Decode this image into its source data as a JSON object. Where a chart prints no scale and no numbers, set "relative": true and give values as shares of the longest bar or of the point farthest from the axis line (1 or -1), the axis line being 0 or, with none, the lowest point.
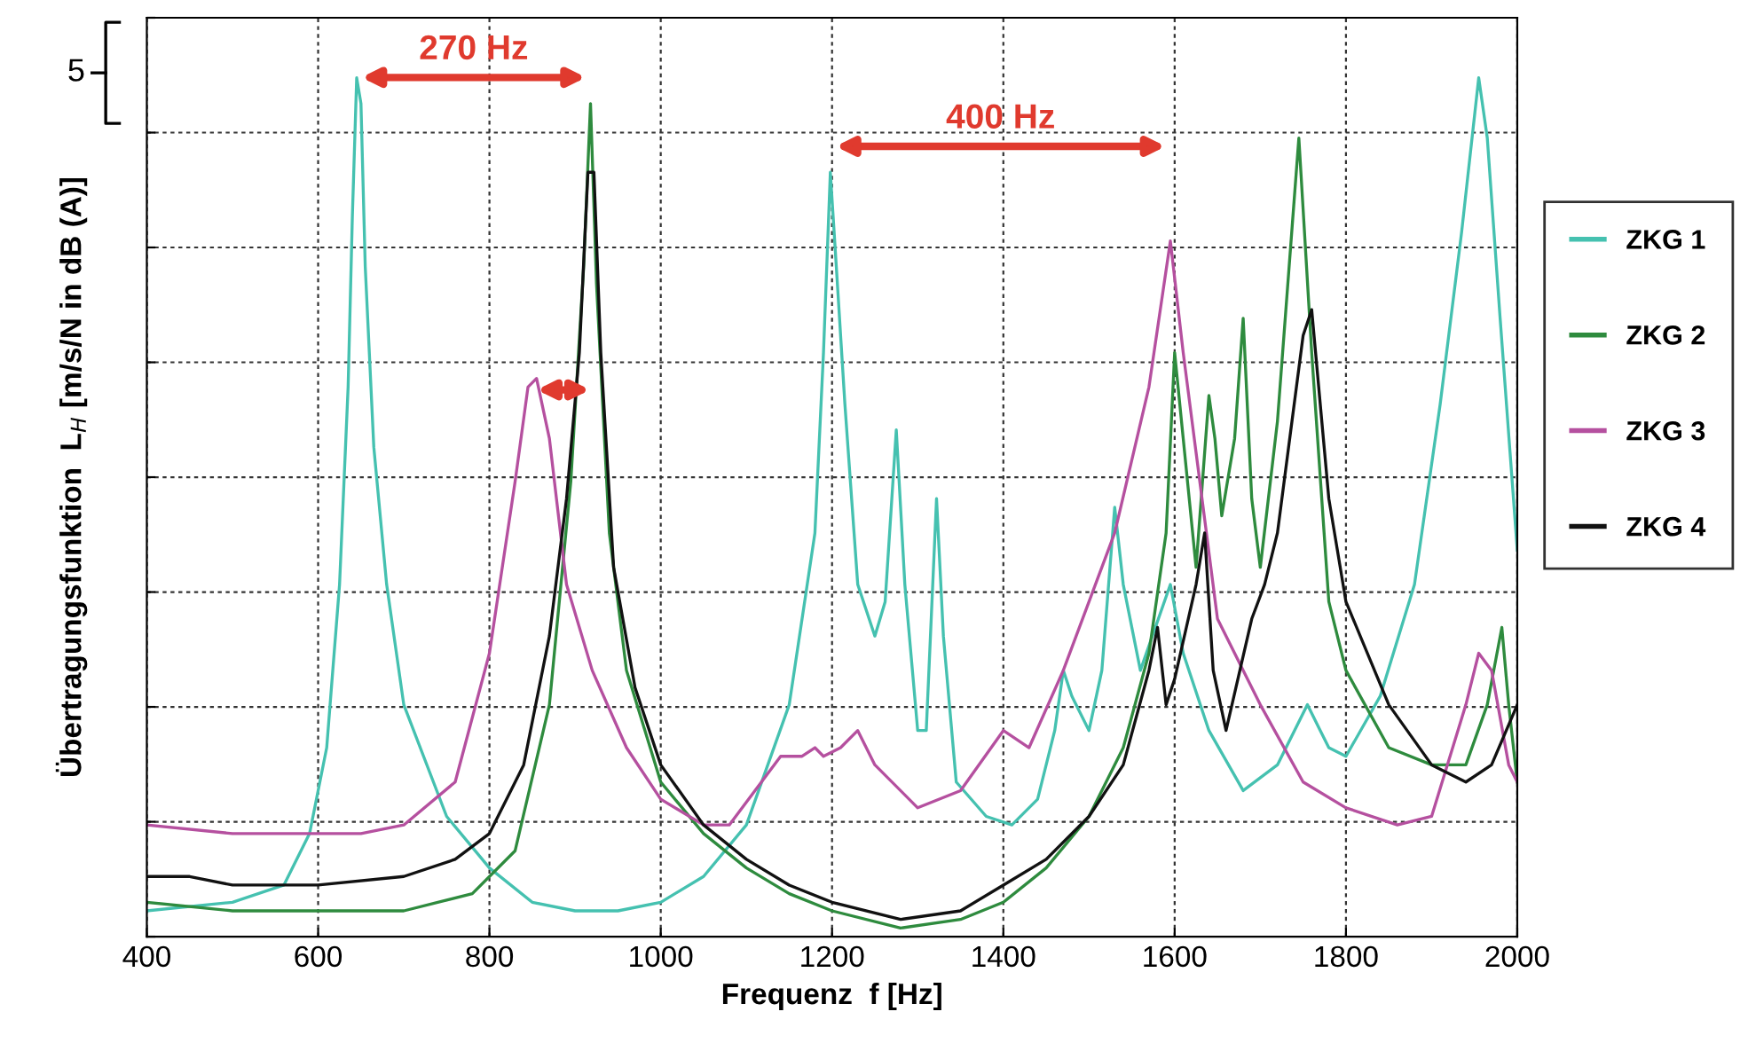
{
  "chart_data": {
    "type": "line",
    "relative": true,
    "xlabel": "Frequenz  f [Hz]",
    "ylabel": "Übertragungsfunktion  L$_{H}$ [m/s/N in dB (A)]",
    "xlim": [
      400,
      2000
    ],
    "xticks": [
      400,
      600,
      800,
      1000,
      1200,
      1400,
      1600,
      1800,
      2000
    ],
    "grid": true,
    "legend": "right",
    "line_style": "solid",
    "annotations": [
      "270 Hz",
      "400 Hz",
      "5"
    ],
    "series": [
      {
        "name": "ZKG 1",
        "color": "#45c1b0",
        "x": [
          400,
          500,
          560,
          590,
          610,
          625,
          635,
          640,
          645,
          650,
          655,
          665,
          680,
          700,
          750,
          800,
          850,
          900,
          950,
          1000,
          1050,
          1100,
          1150,
          1180,
          1190,
          1198,
          1205,
          1215,
          1230,
          1250,
          1262,
          1275,
          1285,
          1300,
          1310,
          1322,
          1330,
          1345,
          1380,
          1410,
          1440,
          1460,
          1470,
          1480,
          1500,
          1515,
          1530,
          1540,
          1560,
          1595,
          1610,
          1640,
          1680,
          1720,
          1755,
          1770,
          1780,
          1800,
          1840,
          1880,
          1910,
          1935,
          1955,
          1965,
          1980,
          2000
        ],
        "values": [
          0.03,
          0.04,
          0.06,
          0.12,
          0.22,
          0.41,
          0.64,
          0.84,
          1.0,
          0.97,
          0.78,
          0.57,
          0.41,
          0.27,
          0.14,
          0.08,
          0.04,
          0.03,
          0.03,
          0.04,
          0.07,
          0.13,
          0.27,
          0.47,
          0.68,
          0.89,
          0.78,
          0.62,
          0.41,
          0.35,
          0.39,
          0.59,
          0.41,
          0.24,
          0.24,
          0.51,
          0.35,
          0.18,
          0.14,
          0.13,
          0.16,
          0.24,
          0.31,
          0.28,
          0.24,
          0.31,
          0.5,
          0.41,
          0.31,
          0.41,
          0.33,
          0.24,
          0.17,
          0.2,
          0.27,
          0.24,
          0.22,
          0.21,
          0.28,
          0.41,
          0.62,
          0.82,
          1.0,
          0.93,
          0.72,
          0.45
        ]
      },
      {
        "name": "ZKG 2",
        "color": "#2e8b3e",
        "x": [
          400,
          500,
          600,
          700,
          780,
          830,
          870,
          895,
          910,
          918,
          925,
          940,
          960,
          1000,
          1050,
          1100,
          1150,
          1200,
          1280,
          1350,
          1400,
          1450,
          1500,
          1540,
          1570,
          1590,
          1600,
          1610,
          1625,
          1640,
          1647,
          1655,
          1670,
          1680,
          1690,
          1700,
          1720,
          1745,
          1760,
          1780,
          1800,
          1850,
          1900,
          1940,
          1965,
          1982,
          1990,
          2000
        ],
        "values": [
          0.04,
          0.03,
          0.03,
          0.03,
          0.05,
          0.1,
          0.27,
          0.53,
          0.78,
          0.97,
          0.76,
          0.47,
          0.31,
          0.18,
          0.12,
          0.08,
          0.05,
          0.03,
          0.01,
          0.02,
          0.04,
          0.08,
          0.14,
          0.22,
          0.33,
          0.47,
          0.68,
          0.58,
          0.43,
          0.63,
          0.58,
          0.49,
          0.58,
          0.72,
          0.51,
          0.43,
          0.6,
          0.93,
          0.68,
          0.39,
          0.31,
          0.22,
          0.2,
          0.2,
          0.27,
          0.36,
          0.27,
          0.18
        ]
      },
      {
        "name": "ZKG 3",
        "color": "#b5509f",
        "x": [
          400,
          500,
          600,
          650,
          700,
          760,
          800,
          830,
          845,
          855,
          870,
          890,
          920,
          960,
          1000,
          1050,
          1080,
          1110,
          1140,
          1165,
          1180,
          1190,
          1210,
          1230,
          1250,
          1300,
          1350,
          1400,
          1430,
          1470,
          1530,
          1570,
          1595,
          1610,
          1650,
          1700,
          1750,
          1800,
          1860,
          1900,
          1940,
          1955,
          1970,
          1990,
          2000
        ],
        "values": [
          0.13,
          0.12,
          0.12,
          0.12,
          0.13,
          0.18,
          0.33,
          0.53,
          0.64,
          0.65,
          0.58,
          0.41,
          0.31,
          0.22,
          0.16,
          0.13,
          0.13,
          0.17,
          0.21,
          0.21,
          0.22,
          0.21,
          0.22,
          0.24,
          0.2,
          0.15,
          0.17,
          0.24,
          0.22,
          0.31,
          0.47,
          0.64,
          0.81,
          0.68,
          0.37,
          0.27,
          0.18,
          0.15,
          0.13,
          0.14,
          0.27,
          0.33,
          0.31,
          0.2,
          0.18
        ]
      },
      {
        "name": "ZKG 4",
        "color": "#111111",
        "x": [
          400,
          450,
          500,
          600,
          700,
          760,
          800,
          840,
          870,
          890,
          905,
          915,
          922,
          930,
          945,
          970,
          1000,
          1050,
          1100,
          1150,
          1200,
          1280,
          1350,
          1400,
          1450,
          1500,
          1540,
          1570,
          1580,
          1590,
          1600,
          1625,
          1635,
          1645,
          1660,
          1690,
          1705,
          1720,
          1750,
          1760,
          1780,
          1800,
          1850,
          1900,
          1940,
          1970,
          2000
        ],
        "values": [
          0.07,
          0.07,
          0.06,
          0.06,
          0.07,
          0.09,
          0.12,
          0.2,
          0.35,
          0.51,
          0.68,
          0.89,
          0.89,
          0.68,
          0.43,
          0.29,
          0.2,
          0.13,
          0.09,
          0.06,
          0.04,
          0.02,
          0.03,
          0.06,
          0.09,
          0.14,
          0.2,
          0.31,
          0.36,
          0.27,
          0.3,
          0.41,
          0.47,
          0.31,
          0.24,
          0.37,
          0.41,
          0.47,
          0.7,
          0.73,
          0.51,
          0.39,
          0.27,
          0.2,
          0.18,
          0.2,
          0.27
        ]
      }
    ]
  }
}
